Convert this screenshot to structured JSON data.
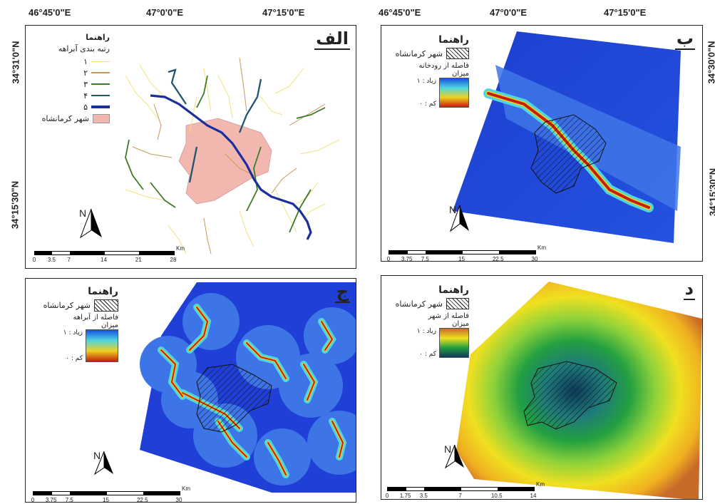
{
  "top_coords": {
    "c1": "46°45'0\"E",
    "c2": "47°0'0\"E",
    "c3": "47°15'0\"E",
    "c4": "46°45'0\"E",
    "c5": "47°0'0\"E",
    "c6": "47°15'0\"E"
  },
  "side_coords": {
    "lat1": "34°31'0\"N",
    "lat2": "34°15'30\"N",
    "rlat1": "34°30'0\"N",
    "rlat2": "34°15'30\"N"
  },
  "panel_a": {
    "title": "الف",
    "legend_title": "راهنما",
    "legend_subtitle": "رتبه بندی آبراهه",
    "orders": [
      {
        "label": "۱",
        "color": "#f2e27a"
      },
      {
        "label": "۲",
        "color": "#c49a5a"
      },
      {
        "label": "۳",
        "color": "#3e7a2a"
      },
      {
        "label": "۴",
        "color": "#22546e"
      },
      {
        "label": "۵",
        "color": "#1a2f9e"
      }
    ],
    "city_label": "شهر کرمانشاه",
    "city_color": "#f2b8b0",
    "scale_labels": [
      "0",
      "3.5",
      "7",
      "14",
      "21",
      "28"
    ],
    "scale_unit": "Km"
  },
  "panel_b": {
    "title": "ب",
    "legend_title": "راهنما",
    "city_label": "شهر کرمانشاه",
    "dist_label": "فاصله از رودخانه",
    "amount_label": "میزان",
    "high_label": "زیاد : ۱",
    "low_label": "کم : ۰",
    "scale_labels": [
      "0",
      "3.75",
      "7.5",
      "15",
      "22.5",
      "30"
    ],
    "scale_unit": "Km"
  },
  "panel_c": {
    "title": "ج",
    "legend_title": "راهنما",
    "city_label": "شهر کرمانشاه",
    "dist_label": "فاصله از آبراهه",
    "amount_label": "میزان",
    "high_label": "زیاد : ۱",
    "low_label": "کم : ۰",
    "scale_labels": [
      "0",
      "3.75",
      "7.5",
      "15",
      "22.5",
      "30"
    ],
    "scale_unit": "Km"
  },
  "panel_d": {
    "title": "د",
    "legend_title": "راهنما",
    "city_label": "شهر کرمانشاه",
    "dist_label": "فاصله از شهر",
    "amount_label": "میزان",
    "high_label": "زیاد : ۱",
    "low_label": "کم : ۰",
    "scale_labels": [
      "0",
      "1.75",
      "3.5",
      "7",
      "10.5",
      "14"
    ],
    "scale_unit": "Km"
  },
  "north_label": "N",
  "colors": {
    "deep_blue": "#1f3fd6",
    "light_blue": "#3d74e6",
    "cyan": "#4fd6e0",
    "red": "#c0200d",
    "dist_ramp_high": "#1650e0",
    "city_dist_center": "#0d3a5a",
    "city_dist_edge": "#c86a2a"
  }
}
